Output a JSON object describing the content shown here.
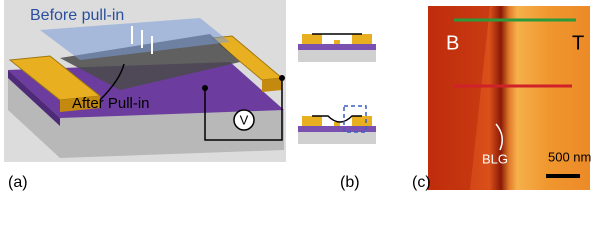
{
  "panel_a": {
    "label": "(a)",
    "before_text": "Before pull-in",
    "after_text": "After Pull-in",
    "voltage_symbol": "V"
  },
  "panel_b": {
    "label": "(b)"
  },
  "panel_c": {
    "label": "(c)",
    "left_electrode": "B",
    "right_electrode": "T",
    "flake_label": "BLG",
    "scale_bar": "500 nm"
  }
}
